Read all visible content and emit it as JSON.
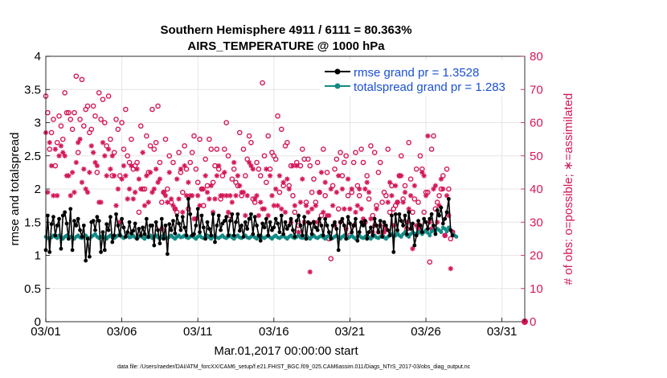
{
  "colors": {
    "rmse": "#000000",
    "spread": "#138a85",
    "obs": "#d4185a",
    "legend_text": "#1a4fd6",
    "grid": "#e6e6e6"
  },
  "chart_data": {
    "type": "line",
    "title": "Southern Hemisphere 4911 / 6111 = 80.363%",
    "subtitle": "AIRS_TEMPERATURE @ 1000 hPa",
    "xlabel": "Mar.01,2017 00:00:00 start",
    "ylabel": "rmse and totalspread",
    "y2label": "# of obs: o=possible; ∗=assimilated",
    "footnote": "data file: /Users/raeder/DAI/ATM_forcXX/CAM6_setup/f.e21.FHIST_BGC.f09_025.CAM6assim.011/Diags_NTrS_2017-03/obs_diag_output.nc",
    "xlim": [
      0,
      31.5
    ],
    "ylim": [
      0,
      4
    ],
    "y2lim": [
      0,
      80
    ],
    "xtick_values": [
      0,
      5,
      10,
      15,
      20,
      25,
      30
    ],
    "xtick_labels": [
      "03/01",
      "03/06",
      "03/11",
      "03/16",
      "03/21",
      "03/26",
      "03/31"
    ],
    "ytick_labels": [
      "0",
      "0.5",
      "1",
      "1.5",
      "2",
      "2.5",
      "3",
      "3.5",
      "4"
    ],
    "y2tick_labels": [
      "0",
      "10",
      "20",
      "30",
      "40",
      "50",
      "60",
      "70",
      "80"
    ],
    "x_step_days": 0.125,
    "series": [
      {
        "name": "rmse grand pr = 1.3528",
        "axis": "left",
        "marker": "dot",
        "values": [
          1.08,
          1.6,
          1.05,
          1.47,
          1.58,
          1.3,
          1.45,
          1.55,
          1.1,
          1.6,
          1.65,
          1.48,
          1.25,
          1.7,
          1.08,
          1.52,
          1.45,
          1.55,
          1.38,
          1.28,
          1.45,
          0.92,
          1.25,
          0.98,
          1.5,
          1.52,
          1.38,
          1.58,
          1.52,
          1.05,
          1.35,
          1.08,
          1.47,
          1.38,
          1.58,
          1.2,
          1.3,
          1.62,
          1.45,
          1.3,
          1.55,
          1.42,
          1.28,
          1.35,
          1.5,
          1.33,
          1.37,
          1.48,
          1.25,
          1.4,
          1.3,
          1.42,
          1.32,
          1.55,
          1.28,
          1.45,
          1.45,
          1.15,
          1.5,
          1.38,
          1.18,
          1.55,
          1.25,
          1.45,
          1.02,
          1.47,
          1.38,
          1.52,
          1.33,
          1.6,
          1.48,
          1.38,
          1.58,
          1.42,
          1.3,
          1.85,
          1.62,
          1.3,
          1.32,
          1.45,
          1.7,
          1.35,
          1.6,
          1.42,
          1.25,
          1.5,
          1.4,
          1.3,
          1.62,
          1.2,
          1.45,
          1.6,
          1.38,
          1.48,
          1.52,
          1.58,
          1.3,
          1.52,
          1.62,
          1.3,
          1.5,
          1.62,
          1.37,
          1.45,
          1.28,
          1.5,
          1.4,
          1.55,
          1.62,
          1.32,
          1.58,
          1.45,
          1.3,
          1.22,
          1.48,
          1.42,
          1.55,
          1.3,
          1.5,
          1.38,
          1.42,
          1.55,
          1.48,
          1.35,
          1.6,
          1.32,
          1.5,
          1.4,
          1.45,
          1.55,
          1.38,
          1.28,
          1.52,
          1.6,
          1.45,
          1.3,
          1.58,
          1.25,
          1.5,
          1.48,
          1.32,
          1.5,
          1.42,
          1.38,
          1.55,
          1.45,
          1.3,
          1.55,
          1.45,
          1.35,
          1.25,
          1.45,
          1.5,
          1.4,
          1.08,
          1.5,
          1.55,
          1.45,
          1.25,
          1.58,
          1.48,
          1.35,
          1.45,
          1.55,
          1.22,
          1.35,
          1.5,
          1.45,
          1.52,
          1.25,
          1.35,
          1.42,
          1.3,
          1.55,
          1.45,
          1.35,
          1.52,
          1.28,
          1.5,
          1.45,
          1.38,
          1.3,
          1.6,
          1.05,
          1.62,
          1.38,
          1.62,
          1.52,
          1.45,
          1.6,
          1.32,
          1.65,
          1.4,
          1.48,
          1.15,
          1.3,
          1.52,
          1.45,
          1.35,
          1.55,
          1.5,
          1.4,
          1.55,
          1.62,
          1.45,
          1.32,
          1.68,
          1.6,
          1.72,
          1.48,
          1.55,
          1.65,
          1.85,
          1.38,
          1.3
        ]
      },
      {
        "name": "totalspread grand pr = 1.283",
        "axis": "left",
        "marker": "dot",
        "values": [
          1.28,
          1.26,
          1.25,
          1.27,
          1.3,
          1.28,
          1.26,
          1.3,
          1.27,
          1.25,
          1.28,
          1.3,
          1.26,
          1.28,
          1.27,
          1.25,
          1.28,
          1.3,
          1.27,
          1.26,
          1.28,
          1.3,
          1.27,
          1.25,
          1.28,
          1.3,
          1.32,
          1.28,
          1.26,
          1.28,
          1.3,
          1.27,
          1.25,
          1.28,
          1.3,
          1.27,
          1.26,
          1.28,
          1.3,
          1.32,
          1.28,
          1.26,
          1.28,
          1.3,
          1.27,
          1.28,
          1.3,
          1.27,
          1.26,
          1.28,
          1.3,
          1.27,
          1.25,
          1.28,
          1.27,
          1.3,
          1.26,
          1.28,
          1.3,
          1.27,
          1.25,
          1.28,
          1.3,
          1.27,
          1.26,
          1.28,
          1.3,
          1.27,
          1.25,
          1.28,
          1.3,
          1.27,
          1.28,
          1.3,
          1.27,
          1.26,
          1.28,
          1.3,
          1.27,
          1.25,
          1.28,
          1.3,
          1.27,
          1.26,
          1.28,
          1.3,
          1.27,
          1.25,
          1.28,
          1.3,
          1.27,
          1.26,
          1.28,
          1.3,
          1.27,
          1.26,
          1.28,
          1.3,
          1.27,
          1.25,
          1.28,
          1.3,
          1.27,
          1.26,
          1.28,
          1.3,
          1.27,
          1.26,
          1.28,
          1.3,
          1.27,
          1.25,
          1.28,
          1.3,
          1.27,
          1.26,
          1.28,
          1.3,
          1.27,
          1.25,
          1.28,
          1.3,
          1.27,
          1.26,
          1.28,
          1.3,
          1.27,
          1.25,
          1.28,
          1.3,
          1.27,
          1.26,
          1.28,
          1.3,
          1.27,
          1.26,
          1.28,
          1.3,
          1.27,
          1.25,
          1.28,
          1.3,
          1.27,
          1.26,
          1.28,
          1.3,
          1.27,
          1.25,
          1.28,
          1.3,
          1.27,
          1.26,
          1.28,
          1.3,
          1.27,
          1.25,
          1.28,
          1.3,
          1.27,
          1.26,
          1.28,
          1.3,
          1.27,
          1.25,
          1.28,
          1.3,
          1.27,
          1.26,
          1.28,
          1.3,
          1.27,
          1.25,
          1.28,
          1.3,
          1.27,
          1.26,
          1.28,
          1.3,
          1.27,
          1.25,
          1.28,
          1.3,
          1.32,
          1.28,
          1.3,
          1.34,
          1.3,
          1.28,
          1.32,
          1.35,
          1.3,
          1.28,
          1.32,
          1.35,
          1.33,
          1.3,
          1.34,
          1.36,
          1.32,
          1.35,
          1.38,
          1.34,
          1.3,
          1.36,
          1.38,
          1.35,
          1.4,
          1.38,
          1.35,
          1.42,
          1.4,
          1.36,
          1.42,
          1.38,
          1.32,
          1.3,
          1.28
        ]
      },
      {
        "name": "obs possible",
        "axis": "right",
        "marker": "circle",
        "values": [
          68,
          63,
          52,
          57,
          61,
          47,
          54,
          62,
          59,
          55,
          69,
          63,
          63,
          61,
          58,
          63,
          74,
          51,
          61,
          73,
          59,
          64,
          65,
          57,
          58,
          65,
          62,
          45,
          69,
          61,
          67,
          60,
          53,
          68,
          55,
          44,
          51,
          61,
          58,
          44,
          60,
          52,
          64,
          50,
          48,
          55,
          46,
          47,
          48,
          33,
          59,
          40,
          40,
          56,
          45,
          53,
          64,
          52,
          54,
          65,
          48,
          36,
          39,
          55,
          40,
          50,
          36,
          48,
          34,
          33,
          51,
          45,
          39,
          53,
          46,
          34,
          48,
          51,
          56,
          46,
          42,
          55,
          40,
          35,
          49,
          41,
          55,
          52,
          42,
          47,
          52,
          46,
          37,
          44,
          52,
          60,
          50,
          32,
          43,
          46,
          42,
          41,
          57,
          38,
          52,
          44,
          49,
          56,
          54,
          37,
          36,
          48,
          46,
          44,
          72,
          50,
          42,
          56,
          46,
          51,
          50,
          49,
          62,
          39,
          58,
          41,
          53,
          54,
          41,
          47,
          38,
          33,
          48,
          29,
          47,
          52,
          49,
          36,
          49,
          47,
          39,
          43,
          36,
          48,
          39,
          32,
          52,
          38,
          45,
          25,
          19,
          41,
          46,
          49,
          34,
          51,
          44,
          48,
          50,
          38,
          26,
          39,
          48,
          51,
          41,
          38,
          52,
          48,
          30,
          44,
          37,
          53,
          32,
          51,
          35,
          45,
          48,
          36,
          39,
          38,
          52,
          33,
          41,
          34,
          35,
          36,
          44,
          50,
          37,
          41,
          28,
          54,
          43,
          33,
          37,
          46,
          36,
          50,
          46,
          33,
          39,
          39,
          18,
          52,
          56,
          34,
          36,
          38,
          40,
          44,
          26,
          46,
          40,
          25,
          27
        ]
      },
      {
        "name": "obs assimilated",
        "axis": "right",
        "marker": "asterisk",
        "values": [
          57,
          39,
          54,
          47,
          38,
          52,
          38,
          50,
          53,
          51,
          50,
          44,
          44,
          38,
          45,
          39,
          48,
          54,
          55,
          42,
          46,
          40,
          39,
          45,
          53,
          51,
          48,
          47,
          36,
          36,
          54,
          50,
          44,
          52,
          46,
          50,
          44,
          35,
          40,
          30,
          43,
          47,
          44,
          37,
          40,
          47,
          37,
          39,
          46,
          43,
          40,
          51,
          35,
          44,
          36,
          45,
          39,
          40,
          46,
          42,
          43,
          28,
          39,
          38,
          36,
          45,
          37,
          35,
          34,
          43,
          37,
          46,
          33,
          47,
          38,
          42,
          38,
          38,
          31,
          31,
          38,
          35,
          40,
          40,
          44,
          39,
          37,
          41,
          33,
          37,
          44,
          47,
          38,
          38,
          45,
          38,
          33,
          38,
          36,
          48,
          38,
          44,
          41,
          39,
          39,
          32,
          38,
          48,
          47,
          46,
          37,
          38,
          32,
          36,
          34,
          34,
          46,
          32,
          44,
          38,
          35,
          40,
          35,
          44,
          34,
          42,
          33,
          43,
          40,
          30,
          47,
          35,
          47,
          27,
          36,
          43,
          30,
          35,
          33,
          15,
          34,
          30,
          35,
          30,
          39,
          45,
          33,
          42,
          32,
          32,
          40,
          35,
          29,
          39,
          44,
          30,
          40,
          34,
          28,
          43,
          34,
          40,
          29,
          33,
          35,
          40,
          34,
          31,
          40,
          42,
          39,
          31,
          27,
          29,
          34,
          27,
          29,
          26,
          27,
          28,
          36,
          42,
          38,
          29,
          41,
          36,
          44,
          44,
          36,
          39,
          30,
          34,
          38,
          22,
          41,
          29,
          28,
          29,
          45,
          44,
          38,
          56,
          30,
          28,
          40,
          41,
          30,
          35,
          43,
          40,
          26,
          38,
          32,
          16,
          27
        ]
      }
    ]
  }
}
